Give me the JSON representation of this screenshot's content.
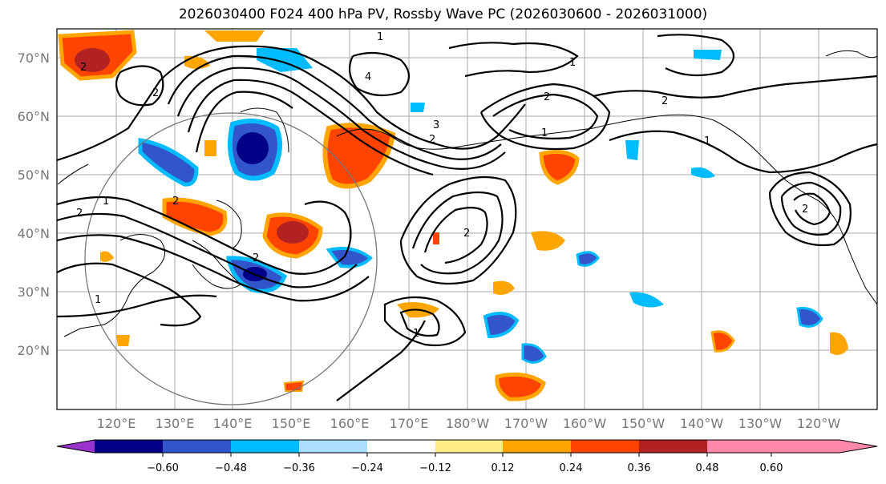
{
  "title": "2026030400 F024 400 hPa PV, Rossby Wave PC (2026030600 - 2026031000)",
  "lat_labels": [
    "70°N",
    "60°N",
    "50°N",
    "40°N",
    "30°N",
    "20°N"
  ],
  "lon_labels": [
    "120°E",
    "130°E",
    "140°E",
    "150°E",
    "160°E",
    "170°E",
    "180°W",
    "170°W",
    "160°W",
    "150°W",
    "140°W",
    "130°W",
    "120°W"
  ],
  "colorbar": {
    "colors": [
      "#9933cc",
      "#000088",
      "#3355cc",
      "#00bbff",
      "#aaddff",
      "#ffffff",
      "#ffee88",
      "#ffa500",
      "#ff4400",
      "#b22222",
      "#ff88aa"
    ],
    "tick_labels": [
      "−0.60",
      "−0.48",
      "−0.36",
      "−0.24",
      "−0.12",
      "0.12",
      "0.24",
      "0.36",
      "0.48",
      "0.60"
    ]
  },
  "contour_labels": [
    "2",
    "1",
    "2",
    "1",
    "2",
    "1",
    "4",
    "2",
    "3",
    "2",
    "1",
    "2",
    "1",
    "1",
    "2",
    "2",
    "2",
    "1",
    "2"
  ]
}
